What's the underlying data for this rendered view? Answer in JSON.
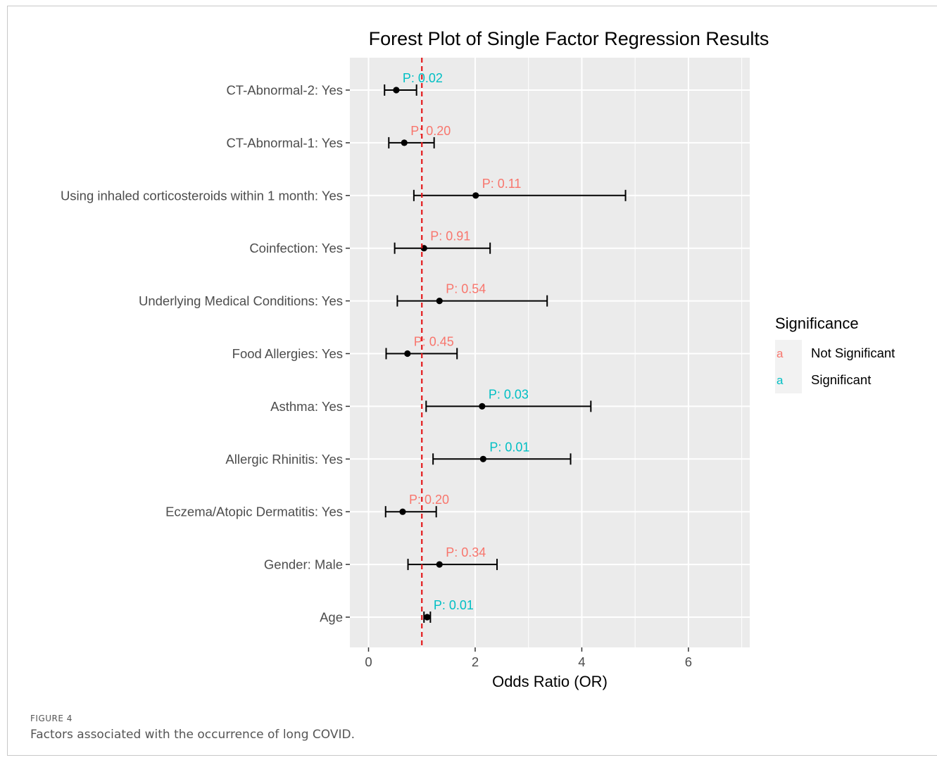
{
  "figure": {
    "label": "FIGURE 4",
    "caption": "Factors associated with the occurrence of long COVID."
  },
  "chart_data": {
    "type": "forest",
    "title": "Forest Plot of Single Factor Regression Results",
    "xlabel": "Odds Ratio (OR)",
    "ylabel": "",
    "xlim": [
      -0.35,
      7.15
    ],
    "xticks": [
      0,
      2,
      4,
      6
    ],
    "reference_line": {
      "x": 1,
      "color": "#e41a1c",
      "style": "dashed"
    },
    "grid": true,
    "legend": {
      "title": "Significance",
      "position": "right",
      "entries": [
        {
          "key": "a",
          "label": "Not Significant",
          "color": "#f8766d"
        },
        {
          "key": "a",
          "label": "Significant",
          "color": "#00bfc4"
        }
      ]
    },
    "colors": {
      "not_significant": "#f8766d",
      "significant": "#00bfc4",
      "panel": "#ebebeb",
      "grid": "#ffffff"
    },
    "rows": [
      {
        "label": "CT-Abnormal-2: Yes",
        "or": 0.52,
        "lower": 0.3,
        "upper": 0.9,
        "p": "P: 0.02",
        "significant": true
      },
      {
        "label": "CT-Abnormal-1: Yes",
        "or": 0.67,
        "lower": 0.38,
        "upper": 1.23,
        "p": "P: 0.20",
        "significant": false
      },
      {
        "label": "Using inhaled corticosteroids within 1 month: Yes",
        "or": 2.01,
        "lower": 0.85,
        "upper": 4.82,
        "p": "P: 0.11",
        "significant": false
      },
      {
        "label": "Coinfection: Yes",
        "or": 1.04,
        "lower": 0.49,
        "upper": 2.28,
        "p": "P: 0.91",
        "significant": false
      },
      {
        "label": "Underlying Medical Conditions: Yes",
        "or": 1.33,
        "lower": 0.54,
        "upper": 3.35,
        "p": "P: 0.54",
        "significant": false
      },
      {
        "label": "Food Allergies: Yes",
        "or": 0.73,
        "lower": 0.33,
        "upper": 1.66,
        "p": "P: 0.45",
        "significant": false
      },
      {
        "label": "Asthma: Yes",
        "or": 2.13,
        "lower": 1.08,
        "upper": 4.17,
        "p": "P: 0.03",
        "significant": true
      },
      {
        "label": "Allergic Rhinitis: Yes",
        "or": 2.15,
        "lower": 1.21,
        "upper": 3.79,
        "p": "P: 0.01",
        "significant": true
      },
      {
        "label": "Eczema/Atopic Dermatitis: Yes",
        "or": 0.64,
        "lower": 0.32,
        "upper": 1.27,
        "p": "P: 0.20",
        "significant": false
      },
      {
        "label": "Gender: Male",
        "or": 1.33,
        "lower": 0.74,
        "upper": 2.41,
        "p": "P: 0.34",
        "significant": false
      },
      {
        "label": "Age",
        "or": 1.1,
        "lower": 1.04,
        "upper": 1.16,
        "p": "P: 0.01",
        "significant": true
      }
    ]
  }
}
